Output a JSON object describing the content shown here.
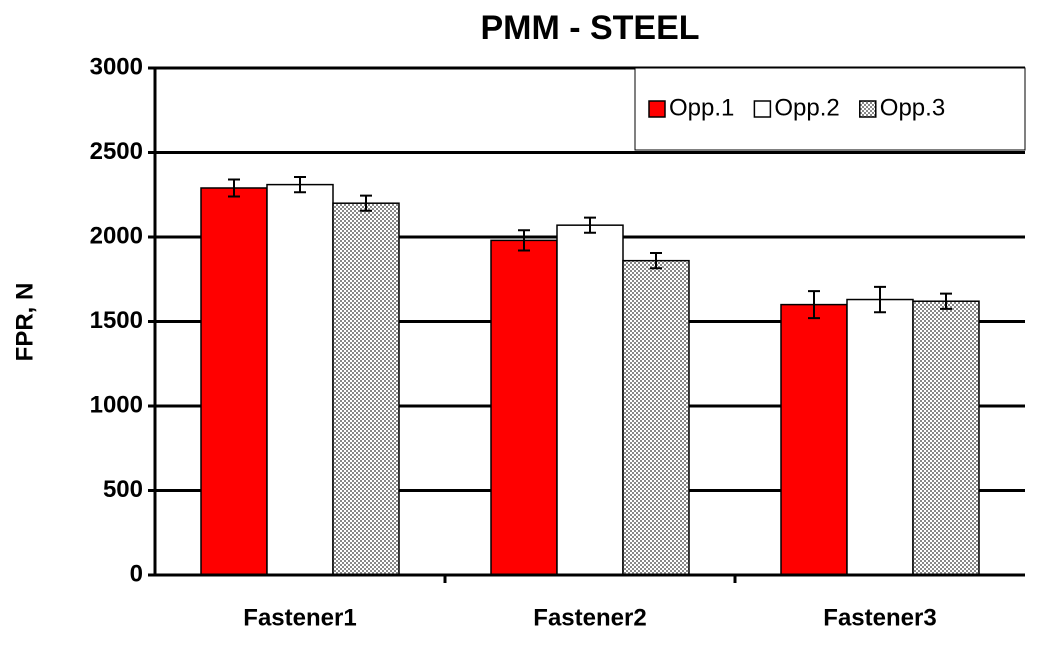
{
  "chart_data": {
    "type": "bar",
    "title": "PMM - STEEL",
    "y_label": "FPR, N",
    "categories": [
      "Fastener1",
      "Fastener2",
      "Fastener3"
    ],
    "series": [
      {
        "name": "Opp.1",
        "color": "#ff0000",
        "values": [
          2290,
          1980,
          1600
        ],
        "errors": [
          50,
          60,
          80
        ]
      },
      {
        "name": "Opp.2",
        "color": "#ffffff",
        "values": [
          2310,
          2070,
          1630
        ],
        "errors": [
          45,
          45,
          75
        ]
      },
      {
        "name": "Opp.3",
        "color": "#c8c8c8",
        "pattern": "dots",
        "values": [
          2200,
          1860,
          1620
        ],
        "errors": [
          45,
          45,
          45
        ]
      }
    ],
    "ylim": [
      0,
      3000
    ],
    "yticks": [
      0,
      500,
      1000,
      1500,
      2000,
      2500,
      3000
    ],
    "grid": true,
    "legend": "top-right"
  }
}
